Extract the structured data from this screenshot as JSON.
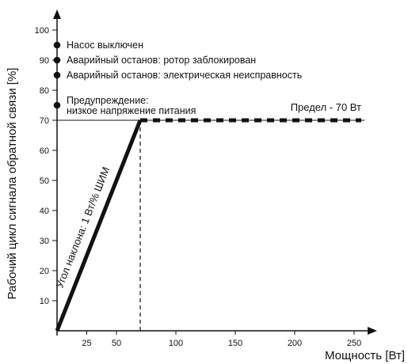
{
  "chart_data": {
    "type": "line",
    "xlabel": "Мощность [Вт]",
    "ylabel": "Рабочий цикл сигнала обратной связи [%]",
    "xlim": [
      0,
      270
    ],
    "ylim": [
      0,
      107
    ],
    "x_ticks": [
      25,
      50,
      100,
      150,
      200,
      250
    ],
    "y_ticks": [
      10,
      20,
      30,
      40,
      50,
      60,
      70,
      80,
      90,
      100
    ],
    "series": [
      {
        "style": "thick-solid",
        "points": [
          [
            0,
            0
          ],
          [
            70,
            70
          ]
        ]
      },
      {
        "style": "thick-dashed",
        "points": [
          [
            70,
            70
          ],
          [
            256,
            70
          ]
        ]
      }
    ],
    "reference_lines": {
      "horizontal_y": 70,
      "vertical_x": 70
    },
    "annotations": {
      "limit_label": "Предел - 70 Вт",
      "slope_label": "Угол наклона: 1 Вт/% ШИМ"
    },
    "status_points": [
      {
        "y": 95,
        "label": "Насос выключен"
      },
      {
        "y": 90,
        "label": "Аварийный останов: ротор заблокирован"
      },
      {
        "y": 85,
        "label": "Аварийный останов: электрическая неисправность"
      },
      {
        "y": 75,
        "label_lines": [
          "Предупреждение:",
          "низкое напряжение питания"
        ]
      }
    ],
    "colors": {
      "ink": "#111111",
      "background": "#ffffff"
    }
  }
}
